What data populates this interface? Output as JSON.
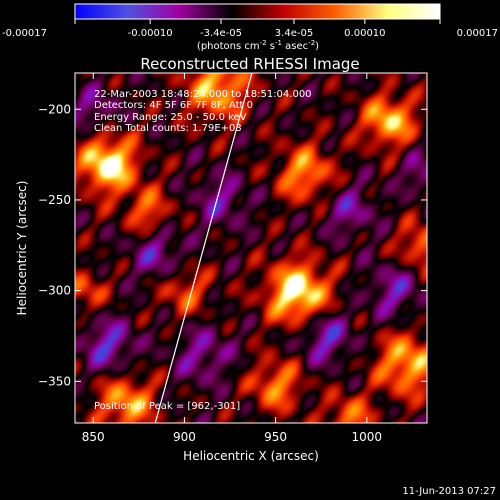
{
  "chart_data": {
    "type": "heatmap",
    "title": "Reconstructed RHESSI Image",
    "xlabel": "Heliocentric X (arcsec)",
    "ylabel": "Heliocentric Y (arcsec)",
    "xlim": [
      840,
      1033
    ],
    "ylim": [
      -373,
      -180
    ],
    "x_ticks": [
      850,
      900,
      950,
      1000
    ],
    "y_ticks": [
      -200,
      -250,
      -300,
      -350
    ],
    "colorbar": {
      "range": [
        -0.00017,
        0.00017
      ],
      "ticks": [
        -0.00017,
        -0.0001,
        -3.4e-05,
        3.4e-05,
        0.0001,
        0.00017
      ],
      "tick_labels": [
        "-0.00017",
        "-0.00010",
        "-3.4e-05",
        "3.4e-05",
        "0.00010",
        "0.00017"
      ],
      "label_text": "(photons cm",
      "label_exp1": "-2",
      "label_mid": " s",
      "label_exp2": "-1",
      "label_mid2": " asec",
      "label_exp3": "-2",
      "label_end": ")",
      "colormap": [
        "#0000ff",
        "#5050e0",
        "#a000a0",
        "#000000",
        "#c00000",
        "#ff6000",
        "#ffff80",
        "#ffffff"
      ]
    },
    "annotations": {
      "time_range": "22-Mar-2003 18:48:24.000 to 18:51:04.000",
      "detectors": "Detectors: 4F 5F 6F 7F 8F, Att 0",
      "energy": "Energy Range: 25.0 - 50.0 keV",
      "clean": "Clean     Total counts: 1.79E+03",
      "peak": "Position of Peak = [962,-301]"
    },
    "limb_line": [
      [
        884,
        -373
      ],
      [
        937,
        -180
      ]
    ],
    "sources": [
      {
        "x": 858,
        "y": -230,
        "v": 1.0,
        "s": 11
      },
      {
        "x": 918,
        "y": -188,
        "v": 0.75,
        "s": 12
      },
      {
        "x": 962,
        "y": -301,
        "v": 1.0,
        "s": 12
      },
      {
        "x": 966,
        "y": -235,
        "v": 0.65,
        "s": 11
      },
      {
        "x": 1012,
        "y": -206,
        "v": 0.8,
        "s": 10
      },
      {
        "x": 1030,
        "y": -275,
        "v": 0.55,
        "s": 9
      },
      {
        "x": 1022,
        "y": -340,
        "v": 0.75,
        "s": 12
      },
      {
        "x": 868,
        "y": -362,
        "v": 0.7,
        "s": 11
      },
      {
        "x": 950,
        "y": -352,
        "v": 0.6,
        "s": 10
      },
      {
        "x": 990,
        "y": -370,
        "v": 0.55,
        "s": 9
      },
      {
        "x": 900,
        "y": -300,
        "v": 0.45,
        "s": 10
      },
      {
        "x": 880,
        "y": -256,
        "v": 0.5,
        "s": 9
      },
      {
        "x": 845,
        "y": -300,
        "v": 0.45,
        "s": 8
      },
      {
        "x": 858,
        "y": -330,
        "v": -0.55,
        "s": 10
      },
      {
        "x": 977,
        "y": -325,
        "v": -0.55,
        "s": 10
      },
      {
        "x": 1015,
        "y": -300,
        "v": -0.45,
        "s": 10
      },
      {
        "x": 885,
        "y": -280,
        "v": -0.45,
        "s": 10
      },
      {
        "x": 920,
        "y": -250,
        "v": -0.4,
        "s": 10
      },
      {
        "x": 990,
        "y": -255,
        "v": -0.4,
        "s": 10
      },
      {
        "x": 910,
        "y": -335,
        "v": -0.4,
        "s": 11
      },
      {
        "x": 850,
        "y": -200,
        "v": -0.35,
        "s": 9
      },
      {
        "x": 1030,
        "y": -235,
        "v": -0.35,
        "s": 8
      }
    ]
  },
  "footer": {
    "timestamp": "11-Jun-2013 07:27"
  }
}
